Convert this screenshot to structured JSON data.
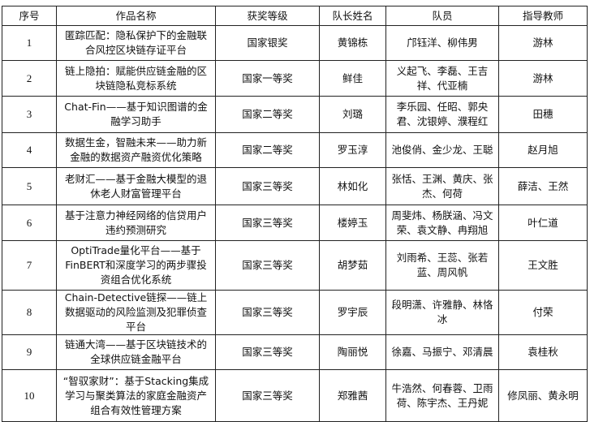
{
  "headers": [
    "序号",
    "作品名称",
    "获奖等级",
    "队长姓名",
    "队员",
    "指导教师"
  ],
  "rows": [
    {
      "no": "1",
      "title": "匿踪匹配：隐私保护下的金融联合风控区块链存证平台",
      "award": "国家银奖",
      "leader": "黄锦栋",
      "members": "邝钰洋、柳伟男",
      "advisor": "游林"
    },
    {
      "no": "2",
      "title": "链上隐拍：赋能供应链金融的区块链隐私竞标系统",
      "award": "国家一等奖",
      "leader": "鲜佳",
      "members": "义起飞、李磊、王吉祥、代亚楠",
      "advisor": "游林"
    },
    {
      "no": "3",
      "title": "Chat-Fin——基于知识图谱的金融学习助手",
      "award": "国家二等奖",
      "leader": "刘璐",
      "members": "李乐园、任昭、郭央君、沈银婷、濮程红",
      "advisor": "田穗"
    },
    {
      "no": "4",
      "title": "数据生金，智融未来——助力新金融的数据资产融资优化策略",
      "award": "国家二等奖",
      "leader": "罗玉淳",
      "members": "池俊俏、金少龙、王聪",
      "advisor": "赵月旭"
    },
    {
      "no": "5",
      "title": "老财汇——基于金融大模型的退休老人财富管理平台",
      "award": "国家三等奖",
      "leader": "林如化",
      "members": "张恬、王渊、黄庆、张杰、何荷",
      "advisor": "薛洁、王然"
    },
    {
      "no": "6",
      "title": "基于注意力神经网络的信贷用户违约预测研究",
      "award": "国家三等奖",
      "leader": "楼婷玉",
      "members": "周斐炜、杨朕涵、冯文荣、袁文静、冉翔旭",
      "advisor": "叶仁道"
    },
    {
      "no": "7",
      "title": "OptiTrade量化平台——基于FinBERT和深度学习的两步骤投资组合优化系统",
      "award": "国家三等奖",
      "leader": "胡梦茹",
      "members": "刘雨希、王蕊、张若蓝、周风帆",
      "advisor": "王文胜"
    },
    {
      "no": "8",
      "title": "Chain-Detective链探——链上数据驱动的风险监测及犯罪侦查平台",
      "award": "国家三等奖",
      "leader": "罗宇辰",
      "members": "段明潇、许雅静、林恪冰",
      "advisor": "付荣"
    },
    {
      "no": "9",
      "title": "链通大湾——基于区块链技术的全球供应链金融平台",
      "award": "国家三等奖",
      "leader": "陶丽悦",
      "members": "徐嘉、马振宁、邓清晨",
      "advisor": "袁桂秋"
    },
    {
      "no": "10",
      "title": "“智驭家财”：基于Stacking集成学习与聚类算法的家庭金融资产组合有效性管理方案",
      "award": "国家三等奖",
      "leader": "郑雅茜",
      "members": "牛浩然、何春蓉、卫雨荷、陈宇杰、王丹妮",
      "advisor": "修凤丽、黄永明"
    }
  ]
}
